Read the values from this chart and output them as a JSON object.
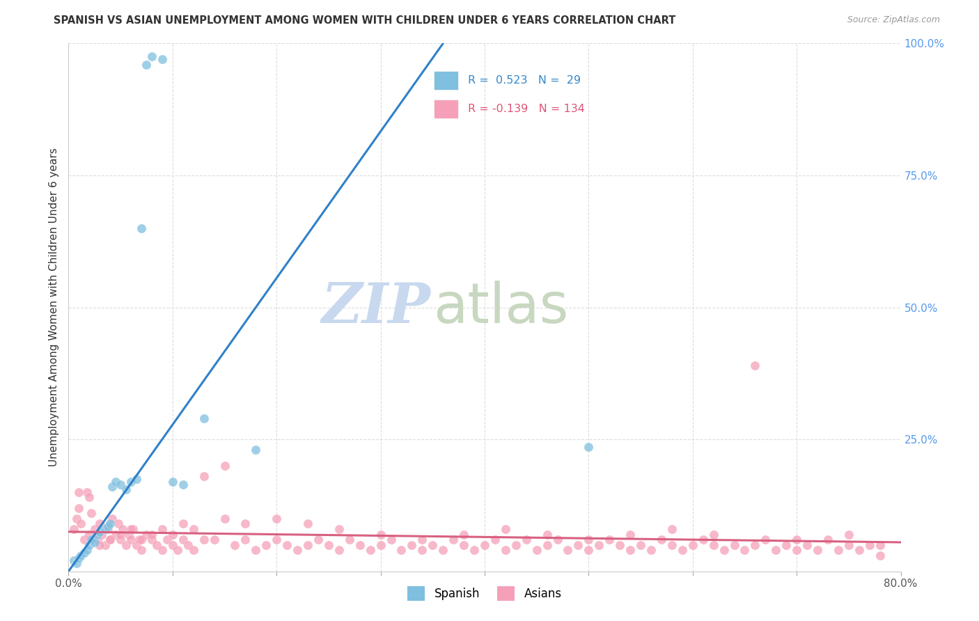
{
  "title": "SPANISH VS ASIAN UNEMPLOYMENT AMONG WOMEN WITH CHILDREN UNDER 6 YEARS CORRELATION CHART",
  "source": "Source: ZipAtlas.com",
  "ylabel": "Unemployment Among Women with Children Under 6 years",
  "xlim": [
    0.0,
    0.8
  ],
  "ylim": [
    0.0,
    1.0
  ],
  "xticks": [
    0.0,
    0.1,
    0.2,
    0.3,
    0.4,
    0.5,
    0.6,
    0.7,
    0.8
  ],
  "xticklabels": [
    "0.0%",
    "",
    "",
    "",
    "",
    "",
    "",
    "",
    "80.0%"
  ],
  "yticks": [
    0.0,
    0.25,
    0.5,
    0.75,
    1.0
  ],
  "yticklabels": [
    "",
    "25.0%",
    "50.0%",
    "75.0%",
    "100.0%"
  ],
  "spanish_color": "#7fbfdf",
  "asian_color": "#f5a0b8",
  "spanish_line_color": "#3080c8",
  "asian_line_color": "#d86080",
  "R_spanish": 0.523,
  "N_spanish": 29,
  "R_asian": -0.139,
  "N_asian": 134,
  "watermark_zip": "ZIP",
  "watermark_atlas": "atlas",
  "watermark_color_zip": "#c8d8ee",
  "watermark_color_atlas": "#c8d8c0",
  "background_color": "#ffffff",
  "title_color": "#333333",
  "source_color": "#999999",
  "ylabel_color": "#333333",
  "ytick_color": "#5599ee",
  "xtick_color": "#555555",
  "grid_color": "#dddddd",
  "legend_border_color": "#cccccc",
  "legend_text_color_spanish": "#3388cc",
  "legend_text_color_asian": "#dd5577",
  "spanish_x": [
    0.005,
    0.008,
    0.01,
    0.012,
    0.015,
    0.018,
    0.02,
    0.022,
    0.025,
    0.028,
    0.03,
    0.035,
    0.038,
    0.04,
    0.042,
    0.045,
    0.05,
    0.055,
    0.06,
    0.065,
    0.07,
    0.075,
    0.08,
    0.09,
    0.1,
    0.11,
    0.13,
    0.18,
    0.5
  ],
  "spanish_y": [
    0.02,
    0.015,
    0.025,
    0.03,
    0.035,
    0.04,
    0.05,
    0.06,
    0.055,
    0.07,
    0.075,
    0.08,
    0.085,
    0.09,
    0.16,
    0.17,
    0.165,
    0.155,
    0.17,
    0.175,
    0.65,
    0.96,
    0.975,
    0.97,
    0.17,
    0.165,
    0.29,
    0.23,
    0.235
  ],
  "asian_x": [
    0.005,
    0.008,
    0.01,
    0.012,
    0.015,
    0.018,
    0.02,
    0.022,
    0.025,
    0.028,
    0.03,
    0.032,
    0.035,
    0.038,
    0.04,
    0.042,
    0.045,
    0.048,
    0.05,
    0.052,
    0.055,
    0.058,
    0.06,
    0.062,
    0.065,
    0.068,
    0.07,
    0.075,
    0.08,
    0.085,
    0.09,
    0.095,
    0.1,
    0.105,
    0.11,
    0.115,
    0.12,
    0.13,
    0.14,
    0.15,
    0.16,
    0.17,
    0.18,
    0.19,
    0.2,
    0.21,
    0.22,
    0.23,
    0.24,
    0.25,
    0.26,
    0.27,
    0.28,
    0.29,
    0.3,
    0.31,
    0.32,
    0.33,
    0.34,
    0.35,
    0.36,
    0.37,
    0.38,
    0.39,
    0.4,
    0.41,
    0.42,
    0.43,
    0.44,
    0.45,
    0.46,
    0.47,
    0.48,
    0.49,
    0.5,
    0.51,
    0.52,
    0.53,
    0.54,
    0.55,
    0.56,
    0.57,
    0.58,
    0.59,
    0.6,
    0.61,
    0.62,
    0.63,
    0.64,
    0.65,
    0.66,
    0.67,
    0.68,
    0.69,
    0.7,
    0.71,
    0.72,
    0.73,
    0.74,
    0.75,
    0.76,
    0.77,
    0.78,
    0.01,
    0.02,
    0.03,
    0.04,
    0.05,
    0.06,
    0.07,
    0.08,
    0.09,
    0.1,
    0.11,
    0.12,
    0.13,
    0.15,
    0.17,
    0.2,
    0.23,
    0.26,
    0.3,
    0.34,
    0.38,
    0.42,
    0.46,
    0.5,
    0.54,
    0.58,
    0.62,
    0.66,
    0.7,
    0.75,
    0.78
  ],
  "asian_y": [
    0.08,
    0.1,
    0.12,
    0.09,
    0.06,
    0.15,
    0.07,
    0.11,
    0.08,
    0.06,
    0.09,
    0.07,
    0.05,
    0.08,
    0.06,
    0.1,
    0.07,
    0.09,
    0.06,
    0.08,
    0.05,
    0.07,
    0.06,
    0.08,
    0.05,
    0.06,
    0.04,
    0.07,
    0.06,
    0.05,
    0.04,
    0.06,
    0.05,
    0.04,
    0.06,
    0.05,
    0.04,
    0.18,
    0.06,
    0.2,
    0.05,
    0.06,
    0.04,
    0.05,
    0.06,
    0.05,
    0.04,
    0.05,
    0.06,
    0.05,
    0.04,
    0.06,
    0.05,
    0.04,
    0.05,
    0.06,
    0.04,
    0.05,
    0.04,
    0.05,
    0.04,
    0.06,
    0.05,
    0.04,
    0.05,
    0.06,
    0.04,
    0.05,
    0.06,
    0.04,
    0.05,
    0.06,
    0.04,
    0.05,
    0.04,
    0.05,
    0.06,
    0.05,
    0.04,
    0.05,
    0.04,
    0.06,
    0.05,
    0.04,
    0.05,
    0.06,
    0.05,
    0.04,
    0.05,
    0.04,
    0.05,
    0.06,
    0.04,
    0.05,
    0.04,
    0.05,
    0.04,
    0.06,
    0.04,
    0.05,
    0.04,
    0.05,
    0.03,
    0.15,
    0.14,
    0.05,
    0.06,
    0.07,
    0.08,
    0.06,
    0.07,
    0.08,
    0.07,
    0.09,
    0.08,
    0.06,
    0.1,
    0.09,
    0.1,
    0.09,
    0.08,
    0.07,
    0.06,
    0.07,
    0.08,
    0.07,
    0.06,
    0.07,
    0.08,
    0.07,
    0.39,
    0.06,
    0.07,
    0.05
  ],
  "spanish_line_x0": 0.0,
  "spanish_line_y0": 0.0,
  "spanish_line_x1": 0.36,
  "spanish_line_y1": 1.0,
  "asian_line_x0": 0.0,
  "asian_line_y0": 0.075,
  "asian_line_x1": 0.8,
  "asian_line_y1": 0.055
}
